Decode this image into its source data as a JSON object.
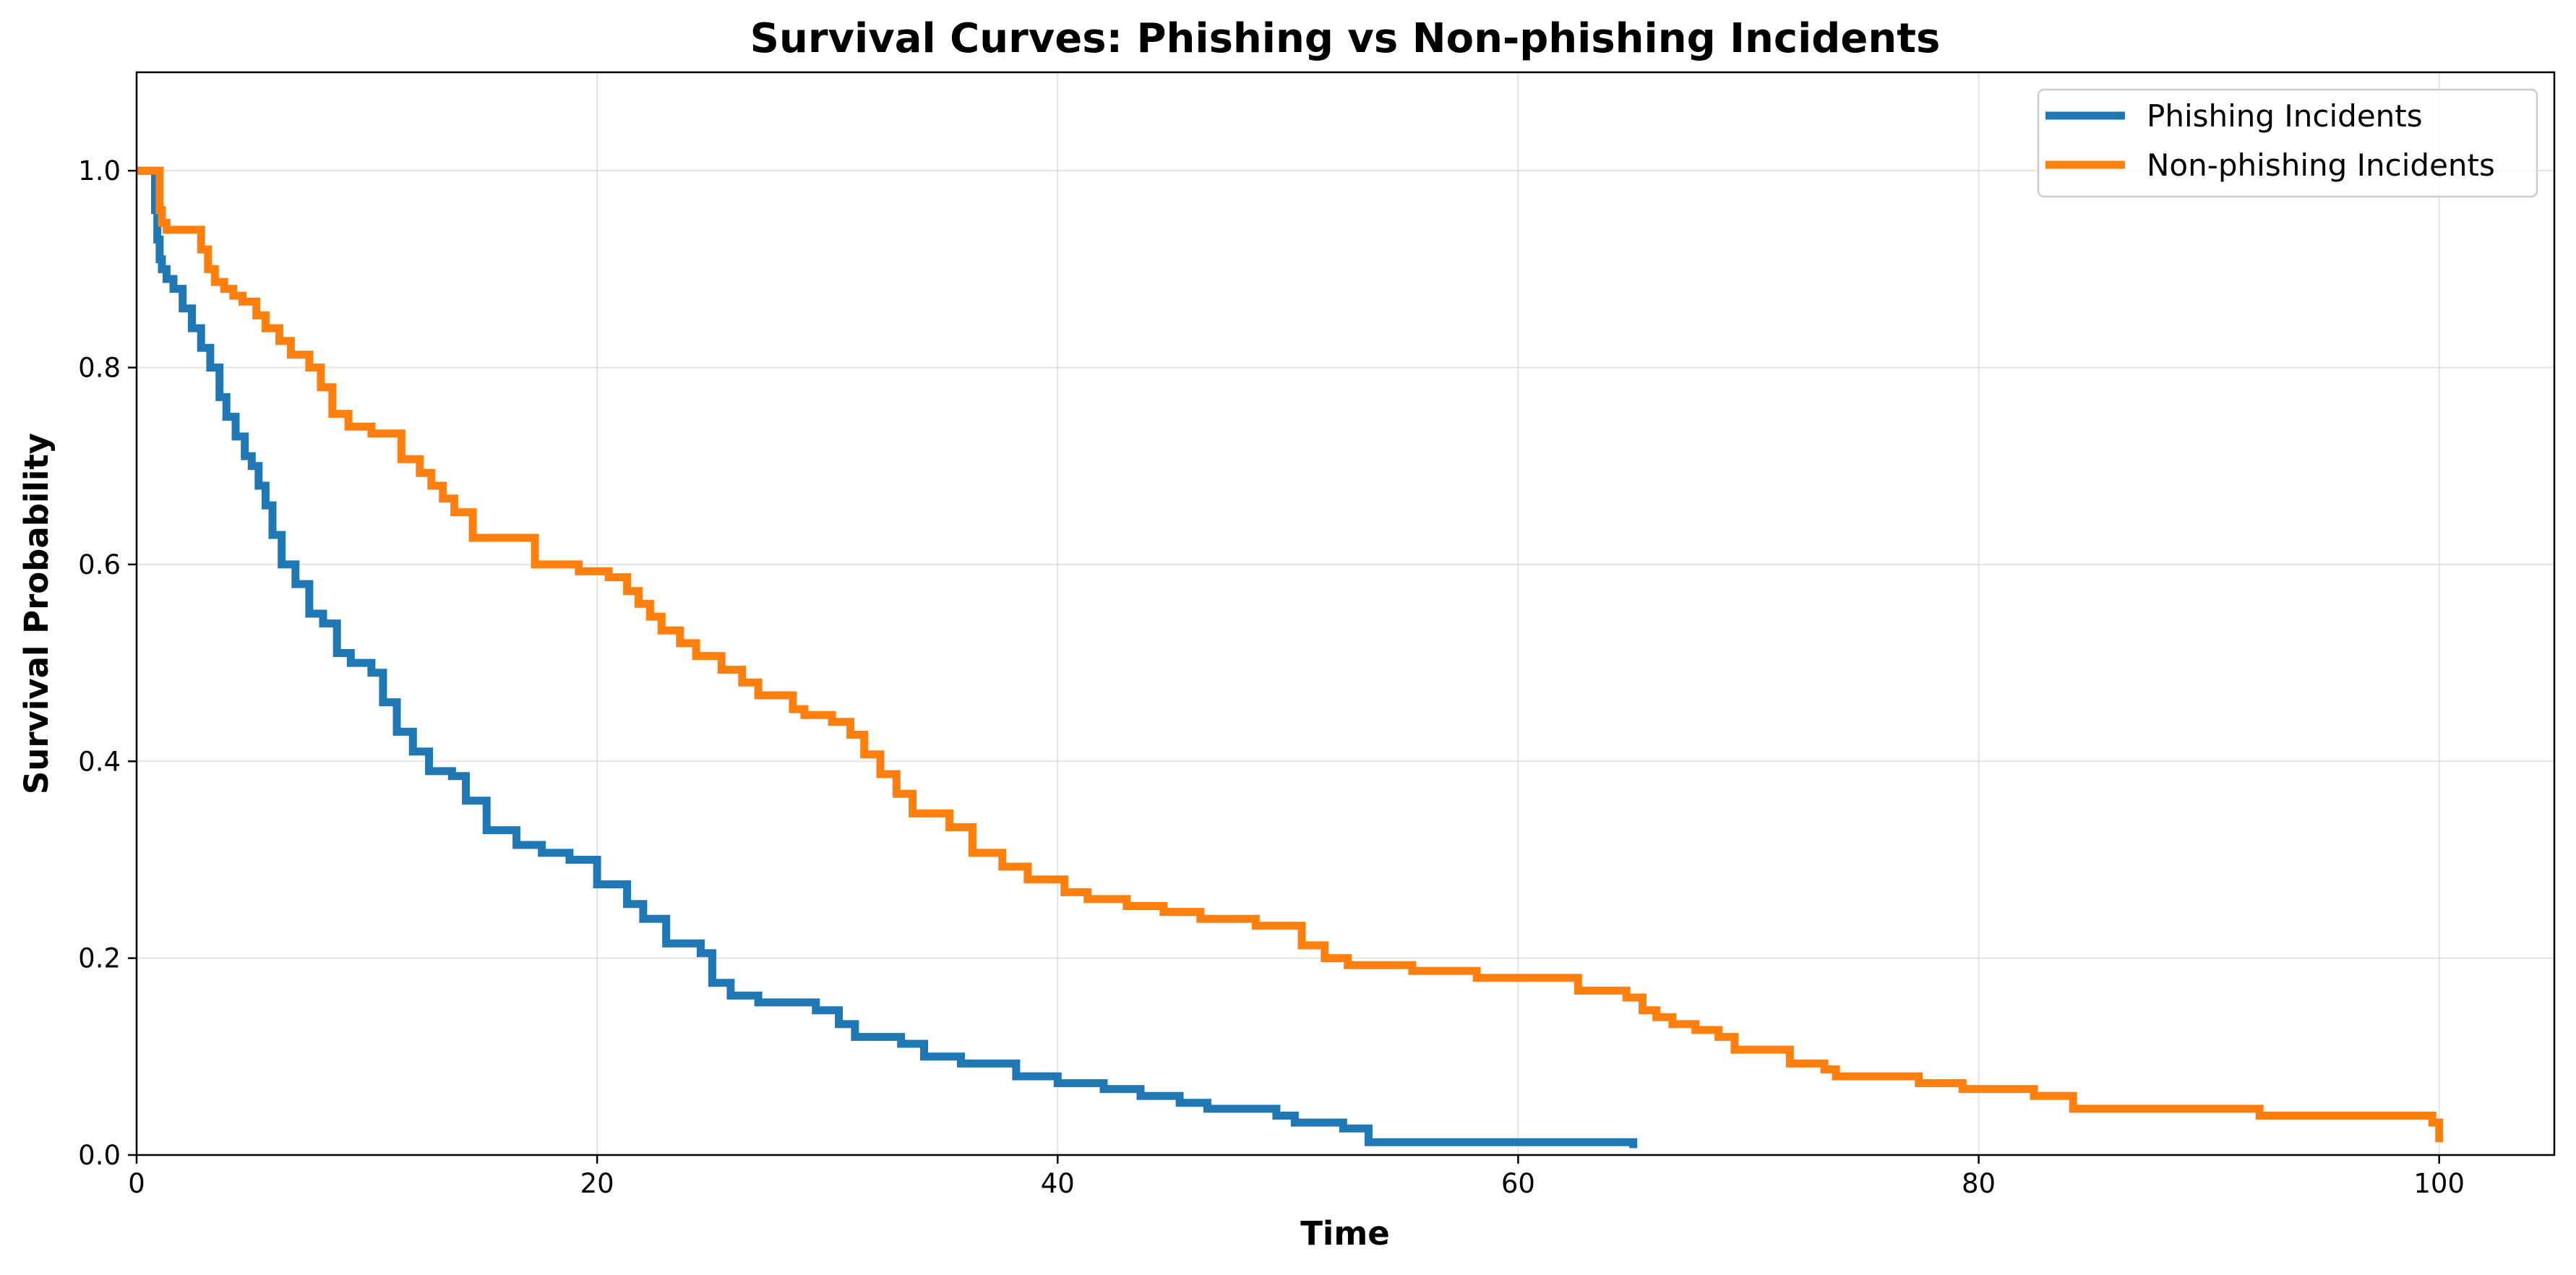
{
  "chart_data": {
    "type": "line",
    "title": "Survival Curves: Phishing vs Non-phishing Incidents",
    "xlabel": "Time",
    "ylabel": "Survival Probability",
    "xlim": [
      0,
      105
    ],
    "ylim": [
      0,
      1.1
    ],
    "x_ticks": [
      0,
      20,
      40,
      60,
      80,
      100
    ],
    "x_tick_labels": [
      "0",
      "20",
      "40",
      "60",
      "80",
      "100"
    ],
    "y_ticks": [
      0.0,
      0.2,
      0.4,
      0.6,
      0.8,
      1.0
    ],
    "y_tick_labels": [
      "0.0",
      "0.2",
      "0.4",
      "0.6",
      "0.8",
      "1.0"
    ],
    "grid": true,
    "legend_position": "top-right",
    "step": "post",
    "series": [
      {
        "name": "Phishing Incidents",
        "color": "#1f77b4",
        "x": [
          0,
          0.8,
          0.9,
          1.0,
          1.1,
          1.3,
          1.6,
          2.0,
          2.4,
          2.8,
          3.2,
          3.6,
          3.9,
          4.3,
          4.7,
          5.0,
          5.3,
          5.6,
          5.9,
          6.3,
          6.9,
          7.5,
          8.1,
          8.7,
          9.3,
          10.2,
          10.7,
          11.3,
          12.0,
          12.7,
          13.7,
          14.3,
          15.2,
          16.5,
          17.6,
          18.8,
          20.0,
          21.3,
          22.0,
          23.0,
          24.5,
          25.0,
          25.8,
          27.0,
          29.5,
          30.5,
          31.2,
          33.2,
          34.2,
          35.8,
          38.2,
          40.0,
          42.0,
          43.6,
          45.3,
          46.5,
          49.5,
          50.3,
          52.4,
          53.5,
          65.0
        ],
        "y": [
          1.0,
          0.96,
          0.93,
          0.91,
          0.9,
          0.89,
          0.88,
          0.86,
          0.84,
          0.82,
          0.8,
          0.77,
          0.75,
          0.73,
          0.71,
          0.7,
          0.68,
          0.66,
          0.63,
          0.6,
          0.58,
          0.55,
          0.54,
          0.51,
          0.5,
          0.49,
          0.46,
          0.43,
          0.41,
          0.39,
          0.385,
          0.36,
          0.33,
          0.315,
          0.307,
          0.3,
          0.275,
          0.255,
          0.24,
          0.215,
          0.205,
          0.175,
          0.162,
          0.155,
          0.147,
          0.133,
          0.12,
          0.113,
          0.1,
          0.093,
          0.08,
          0.073,
          0.067,
          0.06,
          0.053,
          0.047,
          0.04,
          0.033,
          0.027,
          0.013,
          0.007
        ]
      },
      {
        "name": "Non-phishing Incidents",
        "color": "#ff7f0e",
        "x": [
          0,
          1.0,
          1.1,
          1.3,
          2.8,
          3.1,
          3.4,
          3.8,
          4.2,
          4.6,
          5.2,
          5.6,
          6.2,
          6.7,
          7.5,
          8.0,
          8.5,
          9.2,
          10.2,
          11.5,
          12.3,
          12.8,
          13.3,
          13.8,
          14.6,
          17.3,
          19.2,
          20.5,
          21.3,
          21.8,
          22.3,
          22.8,
          23.6,
          24.3,
          25.4,
          26.3,
          27.0,
          28.5,
          29.0,
          30.2,
          31.0,
          31.6,
          32.3,
          33.0,
          33.7,
          35.3,
          36.3,
          37.6,
          38.7,
          40.3,
          41.3,
          43.0,
          44.6,
          46.2,
          48.6,
          50.6,
          51.6,
          52.6,
          55.4,
          58.2,
          62.6,
          64.7,
          65.4,
          66.0,
          66.7,
          67.7,
          68.7,
          69.4,
          71.8,
          73.3,
          73.8,
          77.4,
          79.3,
          82.4,
          84.1,
          92.2,
          99.7,
          100
        ],
        "y": [
          1.0,
          0.96,
          0.947,
          0.94,
          0.92,
          0.9,
          0.887,
          0.88,
          0.873,
          0.867,
          0.853,
          0.84,
          0.827,
          0.813,
          0.8,
          0.78,
          0.753,
          0.74,
          0.733,
          0.707,
          0.693,
          0.68,
          0.667,
          0.653,
          0.627,
          0.6,
          0.593,
          0.587,
          0.573,
          0.56,
          0.547,
          0.533,
          0.52,
          0.507,
          0.493,
          0.48,
          0.467,
          0.453,
          0.447,
          0.44,
          0.427,
          0.407,
          0.387,
          0.367,
          0.347,
          0.333,
          0.307,
          0.293,
          0.28,
          0.267,
          0.26,
          0.253,
          0.247,
          0.24,
          0.233,
          0.213,
          0.2,
          0.193,
          0.187,
          0.18,
          0.167,
          0.16,
          0.147,
          0.14,
          0.133,
          0.127,
          0.12,
          0.107,
          0.093,
          0.087,
          0.08,
          0.073,
          0.067,
          0.06,
          0.047,
          0.04,
          0.033,
          0.013
        ]
      }
    ]
  }
}
